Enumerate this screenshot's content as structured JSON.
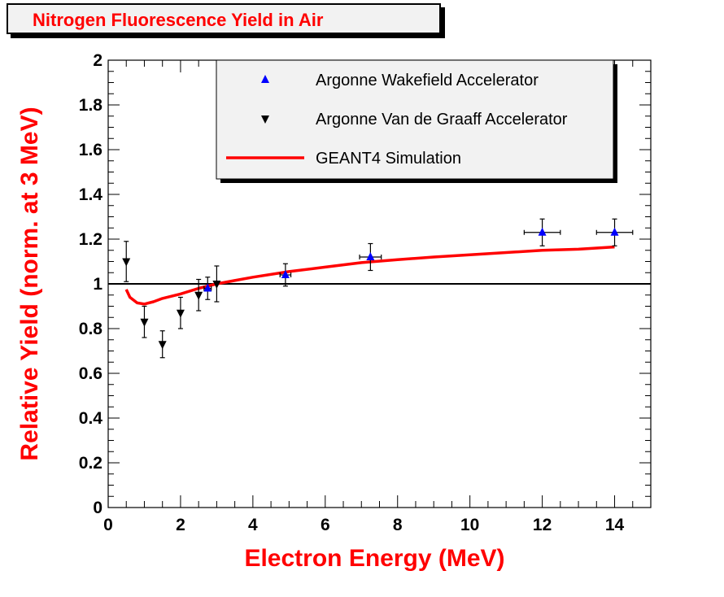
{
  "chart_data": {
    "type": "scatter",
    "title": "Nitrogen Fluorescence Yield in Air",
    "xlabel": "Electron Energy (MeV)",
    "ylabel": "Relative Yield (norm. at 3 MeV)",
    "xlim": [
      0,
      15
    ],
    "ylim": [
      0,
      2
    ],
    "x_ticks": [
      "0",
      "2",
      "4",
      "6",
      "8",
      "10",
      "12",
      "14"
    ],
    "y_ticks": [
      "0",
      "0.2",
      "0.4",
      "0.6",
      "0.8",
      "1",
      "1.2",
      "1.4",
      "1.6",
      "1.8",
      "2"
    ],
    "reference_line_y": 1.0,
    "grid": false,
    "legend_position": "top-right",
    "series": [
      {
        "name": "Argonne Wakefield Accelerator",
        "marker": "triangle-up",
        "color": "#0000ff",
        "points": [
          {
            "x": 2.75,
            "y": 0.98,
            "xerr": 0.1,
            "yerr": 0.05
          },
          {
            "x": 4.9,
            "y": 1.04,
            "xerr": 0.15,
            "yerr": 0.05
          },
          {
            "x": 7.25,
            "y": 1.12,
            "xerr": 0.3,
            "yerr": 0.06
          },
          {
            "x": 12.0,
            "y": 1.23,
            "xerr": 0.5,
            "yerr": 0.06
          },
          {
            "x": 14.0,
            "y": 1.23,
            "xerr": 0.5,
            "yerr": 0.06
          }
        ]
      },
      {
        "name": "Argonne Van de Graaff Accelerator",
        "marker": "triangle-down",
        "color": "#000000",
        "points": [
          {
            "x": 0.5,
            "y": 1.1,
            "yerr": 0.09
          },
          {
            "x": 1.0,
            "y": 0.83,
            "yerr": 0.07
          },
          {
            "x": 1.5,
            "y": 0.73,
            "yerr": 0.06
          },
          {
            "x": 2.0,
            "y": 0.87,
            "yerr": 0.07
          },
          {
            "x": 2.5,
            "y": 0.95,
            "yerr": 0.07
          },
          {
            "x": 3.0,
            "y": 1.0,
            "yerr": 0.08
          }
        ]
      },
      {
        "name": "GEANT4 Simulation",
        "marker": "line",
        "color": "#ff0000",
        "points": [
          {
            "x": 0.5,
            "y": 0.975
          },
          {
            "x": 0.6,
            "y": 0.94
          },
          {
            "x": 0.8,
            "y": 0.915
          },
          {
            "x": 1.0,
            "y": 0.91
          },
          {
            "x": 1.25,
            "y": 0.92
          },
          {
            "x": 1.5,
            "y": 0.935
          },
          {
            "x": 2.0,
            "y": 0.955
          },
          {
            "x": 2.5,
            "y": 0.98
          },
          {
            "x": 3.0,
            "y": 1.0
          },
          {
            "x": 3.5,
            "y": 1.015
          },
          {
            "x": 4.0,
            "y": 1.03
          },
          {
            "x": 5.0,
            "y": 1.055
          },
          {
            "x": 6.0,
            "y": 1.075
          },
          {
            "x": 7.0,
            "y": 1.095
          },
          {
            "x": 8.0,
            "y": 1.108
          },
          {
            "x": 9.0,
            "y": 1.12
          },
          {
            "x": 10.0,
            "y": 1.13
          },
          {
            "x": 11.0,
            "y": 1.14
          },
          {
            "x": 12.0,
            "y": 1.15
          },
          {
            "x": 13.0,
            "y": 1.155
          },
          {
            "x": 14.0,
            "y": 1.165
          }
        ]
      }
    ]
  }
}
